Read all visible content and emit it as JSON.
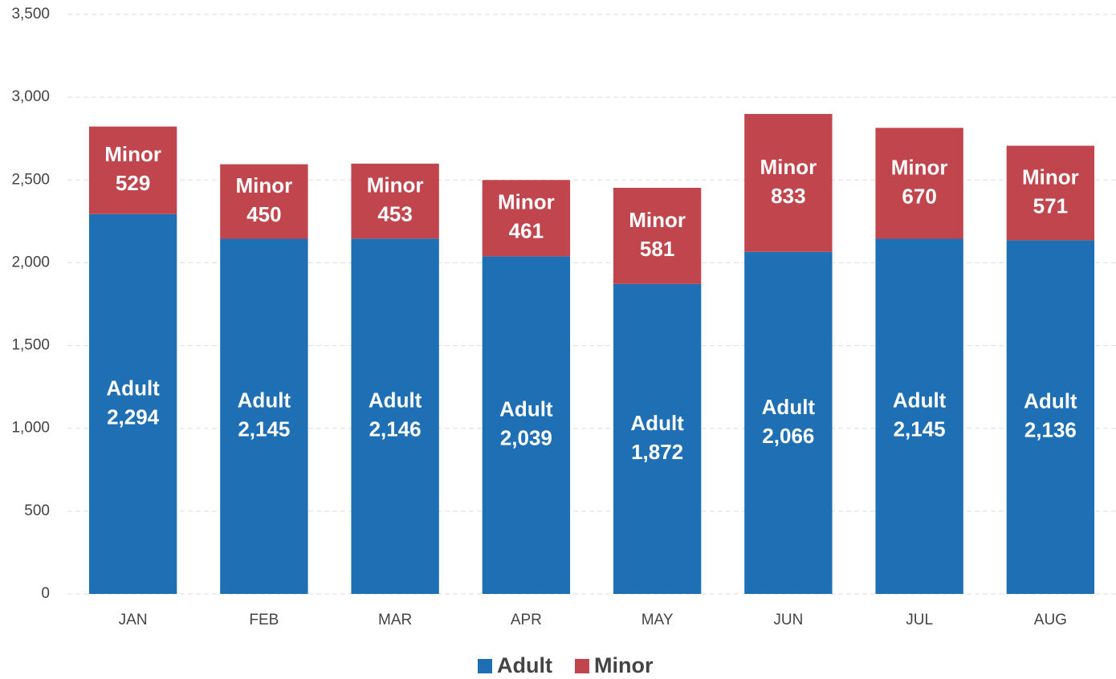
{
  "chart_data": {
    "type": "stacked_bar",
    "categories": [
      "JAN",
      "FEB",
      "MAR",
      "APR",
      "MAY",
      "JUN",
      "JUL",
      "AUG"
    ],
    "series": [
      {
        "name": "Adult",
        "color": "#1f6fb5",
        "values": [
          2294,
          2145,
          2146,
          2039,
          1872,
          2066,
          2145,
          2136
        ],
        "value_labels": [
          "2,294",
          "2,145",
          "2,146",
          "2,039",
          "1,872",
          "2,066",
          "2,145",
          "2,136"
        ]
      },
      {
        "name": "Minor",
        "color": "#c0454c",
        "values": [
          529,
          450,
          453,
          461,
          581,
          833,
          670,
          571
        ]
      }
    ],
    "ylim": [
      0,
      3500
    ],
    "yticks": [
      0,
      500,
      {
        "value": 1000,
        "label": "1,000"
      },
      {
        "value": 1500,
        "label": "1,500"
      },
      {
        "value": 2000,
        "label": "2,000"
      },
      {
        "value": 2500,
        "label": "2,500"
      },
      {
        "value": 3000,
        "label": "3,000"
      },
      {
        "value": 3500,
        "label": "3,500"
      }
    ],
    "grid": true,
    "legend": "bottom"
  }
}
